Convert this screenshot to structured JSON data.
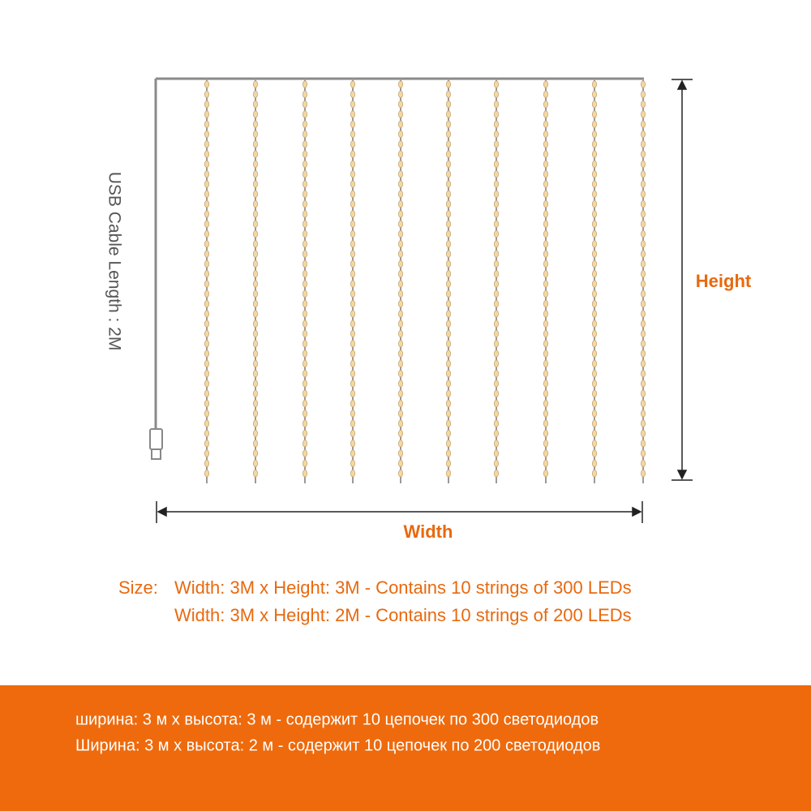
{
  "diagram": {
    "cable_label": "USB Cable Length : 2M",
    "height_label": "Height",
    "width_label": "Width",
    "size": {
      "label": "Size:",
      "lines": [
        "Width: 3M x Height: 3M - Contains 10 strings of 300 LEDs",
        "Width: 3M x Height: 2M - Contains 10 strings of 200 LEDs"
      ]
    },
    "russian_lines": [
      "ширина: 3 м x высота: 3 м - содержит 10 цепочек по 300 светодиодов",
      "Ширина: 3 м x высота: 2 м - содержит 10 цепочек по 200 светодиодов"
    ]
  }
}
